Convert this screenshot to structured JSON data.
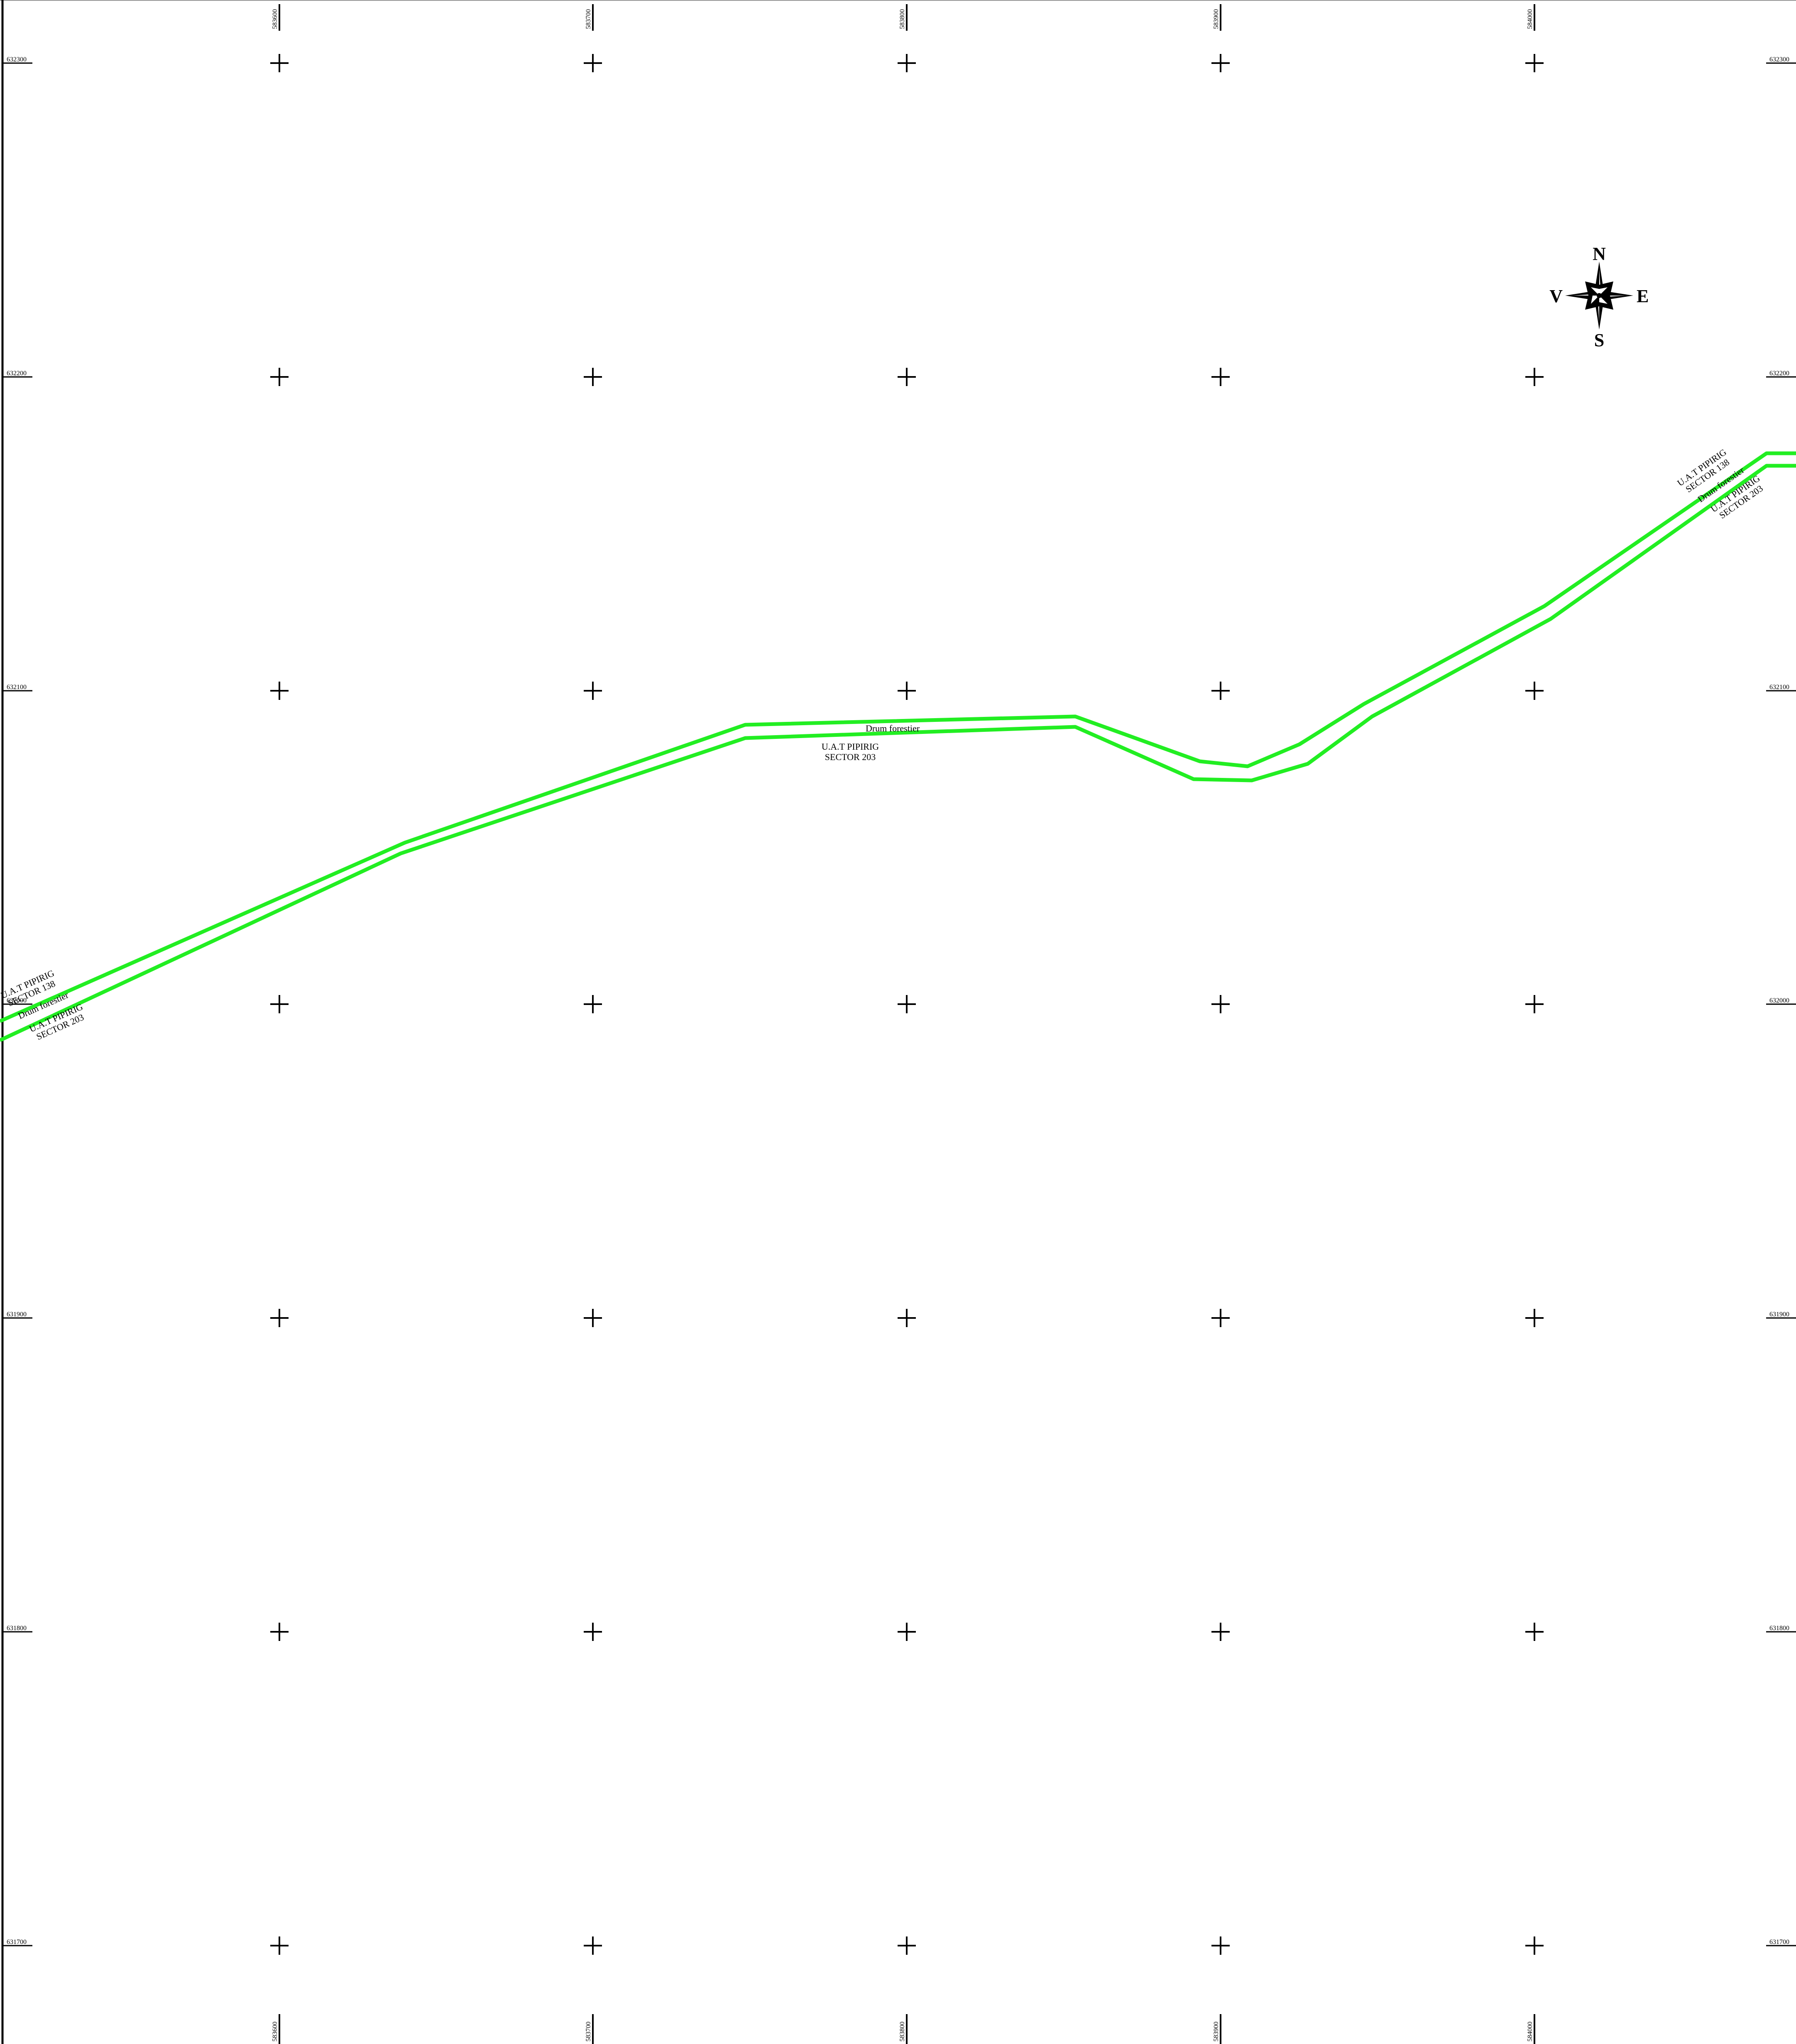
{
  "grid": {
    "eastings": [
      "583600",
      "583700",
      "583800",
      "583900",
      "584000"
    ],
    "northings": [
      "632300",
      "632200",
      "632100",
      "632000",
      "631900",
      "631800",
      "631700"
    ]
  },
  "compass": {
    "north": "N",
    "south": "S",
    "east": "E",
    "west": "V"
  },
  "road": {
    "color": "#22ee22",
    "label_center": "Drum forestier",
    "label_center_sector": [
      "U.A.T PIPIRIG",
      "SECTOR 203"
    ],
    "label_left_upper": [
      "U.A.T PIPIRIG",
      "SECTOR 138"
    ],
    "label_left_road": "Drum forestier",
    "label_left_lower": [
      "U.A.T PIPIRIG",
      "SECTOR 203"
    ],
    "label_right_upper": [
      "U.A.T PIPIRIG",
      "SECTOR 138"
    ],
    "label_right_road": "Drum forestier",
    "label_right_lower": [
      "U.A.T PIPIRIG",
      "SECTOR 203"
    ]
  }
}
